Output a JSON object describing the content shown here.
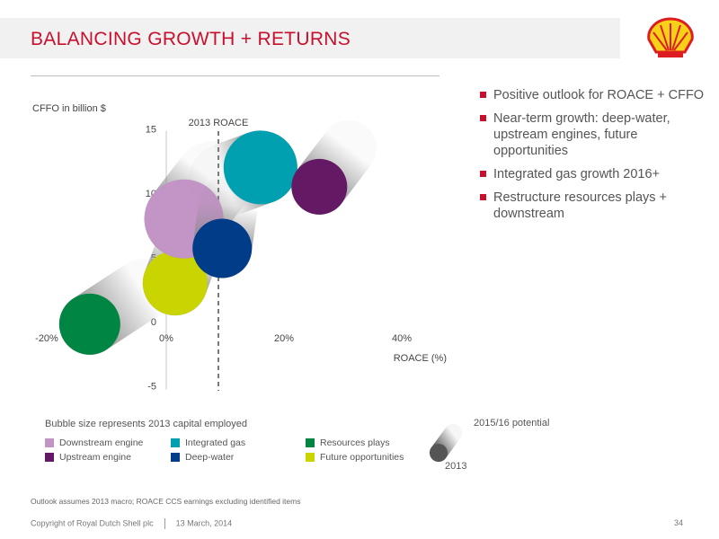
{
  "header": {
    "title": "BALANCING GROWTH + RETURNS"
  },
  "bullets": [
    "Positive outlook for ROACE + CFFO",
    "Near-term growth: deep-water, upstream engines, future opportunities",
    "Integrated gas growth 2016+",
    "Restructure resources plays + downstream"
  ],
  "legend": {
    "note": "Bubble size represents 2013 capital employed",
    "key_top": "2015/16 potential",
    "key_bottom": "2013"
  },
  "chart_data": {
    "type": "scatter",
    "ylabel": "CFFO in billion $",
    "xlabel": "ROACE (%)",
    "reference_line": {
      "x": 5,
      "label": "2013 ROACE"
    },
    "xlim": [
      -20,
      42
    ],
    "ylim": [
      -5,
      15
    ],
    "x_ticks": [
      "-20%",
      "0%",
      "20%",
      "40%"
    ],
    "y_ticks": [
      "15",
      "10",
      "5",
      "0",
      "-5"
    ],
    "series": [
      {
        "name": "Resources plays",
        "color": "#008542",
        "from": [
          -13,
          -0.2
        ],
        "to": [
          -4,
          2.5
        ],
        "size": 0.8
      },
      {
        "name": "Future opportunities",
        "color": "#c9d400",
        "from": [
          1.5,
          3
        ],
        "to": [
          4,
          6
        ],
        "size": 0.9
      },
      {
        "name": "Downstream engine",
        "color": "#c394c6",
        "from": [
          3,
          8
        ],
        "to": [
          8,
          11
        ],
        "size": 1.3
      },
      {
        "name": "Deep-water",
        "color": "#003c88",
        "from": [
          9.5,
          5.7
        ],
        "to": [
          10.5,
          9
        ],
        "size": 0.75
      },
      {
        "name": "Integrated gas",
        "color": "#00a0b0",
        "from": [
          16,
          12
        ],
        "to": [
          10,
          11
        ],
        "size": 1.15
      },
      {
        "name": "Upstream engine",
        "color": "#641964",
        "from": [
          26,
          10.5
        ],
        "to": [
          31,
          13.5
        ],
        "size": 0.65
      }
    ]
  },
  "footnote": "Outlook assumes 2013 macro; ROACE CCS earnings excluding identified items",
  "footer": {
    "copyright": "Copyright of Royal Dutch Shell plc",
    "date": "13 March, 2014",
    "page": "34"
  }
}
